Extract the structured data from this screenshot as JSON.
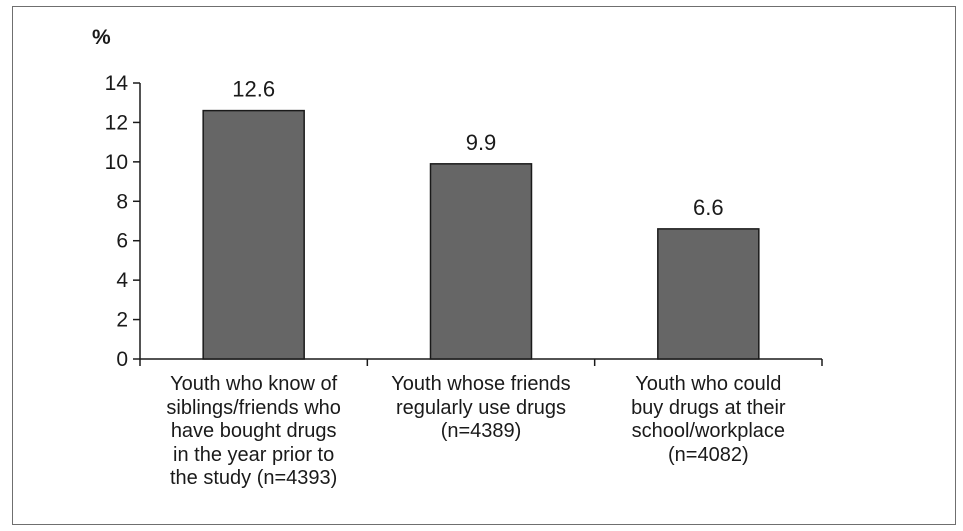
{
  "chart_data": {
    "type": "bar",
    "unit_label": "%",
    "categories": [
      "Youth who know of\nsiblings/friends who\nhave bought drugs\nin the year prior to\nthe study (n=4393)",
      "Youth whose friends\nregularly use drugs\n(n=4389)",
      "Youth who could\nbuy drugs at their\nschool/workplace\n(n=4082)"
    ],
    "values": [
      12.6,
      9.9,
      6.6
    ],
    "data_labels": [
      "12.6",
      "9.9",
      "6.6"
    ],
    "y_ticks": [
      "0",
      "2",
      "4",
      "6",
      "8",
      "10",
      "12",
      "14"
    ],
    "ylim": [
      0,
      14
    ],
    "grid": false,
    "legend": "none",
    "bar_color": "#666666",
    "bar_edge_color": "#1a1a1a"
  }
}
